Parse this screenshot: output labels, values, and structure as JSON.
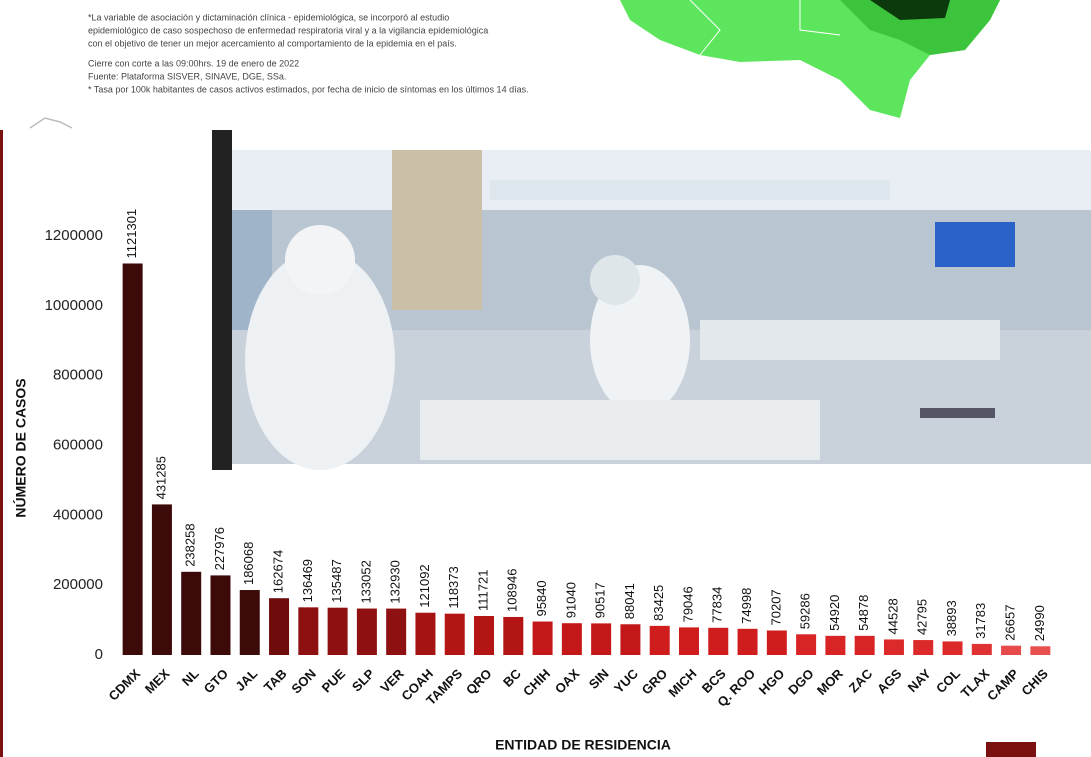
{
  "chart_data": {
    "type": "bar",
    "annotations": [
      "*La variable de asociación y dictaminación clínica - epidemiológica, se incorporó al estudio",
      "epidemiológico de caso sospechoso de enfermedad respiratoria viral y a la vigilancia epidemiológica",
      "con el objetivo de tener un mejor acercamiento al comportamiento de la epidemia en el país.",
      "Cierre con corte a las 09:00hrs. 19 de enero de 2022",
      "Fuente: Plataforma SISVER, SINAVE, DGE, SSa.",
      "* Tasa por 100k habitantes de casos activos estimados, por fecha de inicio de síntomas en los últimos 14 días."
    ],
    "y_label": "NÚMERO DE CASOS",
    "x_label": "ENTIDAD DE RESIDENCIA",
    "categories": [
      "CDMX",
      "MEX",
      "NL",
      "GTO",
      "JAL",
      "TAB",
      "SON",
      "PUE",
      "SLP",
      "VER",
      "COAH",
      "TAMPS",
      "QRO",
      "BC",
      "CHIH",
      "OAX",
      "SIN",
      "YUC",
      "GRO",
      "MICH",
      "BCS",
      "Q. ROO",
      "HGO",
      "DGO",
      "MOR",
      "ZAC",
      "AGS",
      "NAY",
      "COL",
      "TLAX",
      "CAMP",
      "CHIS"
    ],
    "values": [
      1121301,
      431285,
      238258,
      227976,
      186068,
      162674,
      136469,
      135487,
      133052,
      132930,
      121092,
      118373,
      111721,
      108946,
      95840,
      91040,
      90517,
      88041,
      83425,
      79046,
      77834,
      74998,
      70207,
      59286,
      54920,
      54878,
      44528,
      42795,
      38893,
      31783,
      26657,
      24990
    ],
    "colors": [
      "#3d0a0a",
      "#3d0a0a",
      "#3d0a0a",
      "#3d0a0a",
      "#3d0a0a",
      "#6e0c0c",
      "#8e1010",
      "#8e1010",
      "#8e1010",
      "#8e1010",
      "#a51313",
      "#b31414",
      "#b31414",
      "#b31414",
      "#c41818",
      "#c41818",
      "#c41818",
      "#c41818",
      "#cf1c1c",
      "#cf1c1c",
      "#cf1c1c",
      "#cf1c1c",
      "#cf1c1c",
      "#d82424",
      "#d82424",
      "#d82424",
      "#dc2a2a",
      "#dc2a2a",
      "#dc2a2a",
      "#e03232",
      "#e64a4a",
      "#e85050"
    ],
    "ylim": [
      0,
      1200000
    ],
    "yticks": [
      0,
      200000,
      400000,
      600000,
      800000,
      1000000,
      1200000
    ]
  }
}
